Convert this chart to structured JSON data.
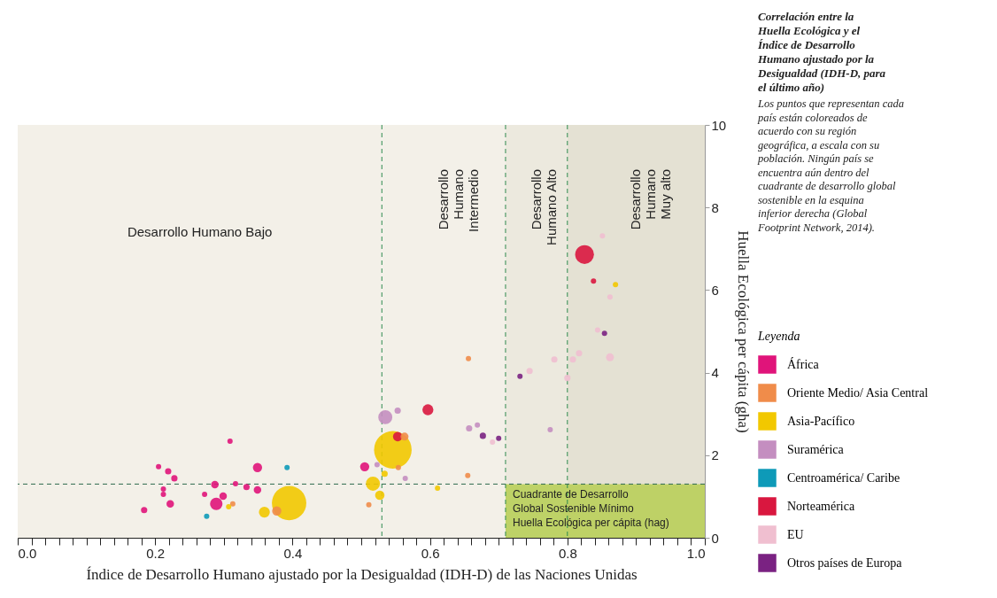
{
  "chart_data": {
    "type": "bubble",
    "title": "Correlación entre la Huella Ecológica y el Índice de Desarrollo Humano ajustado por la Desigualdad (IDH-D, para el último año)",
    "subtitle": "Los puntos que representan cada país están coloreados de acuerdo con su región geográfica, a escala con su población. Ningún país se encuentra aún dentro del cuadrante de desarrollo global sostenible en la esquina inferior derecha (Global Footprint Network, 2014).",
    "xlabel": "Índice de Desarrollo Humano ajustado por la Desigualdad (IDH-D) de las Naciones Unidas",
    "ylabel": "Huella Ecológica per cápita (gha)",
    "legend_title": "Leyenda",
    "xlim": [
      0,
      1
    ],
    "ylim": [
      0,
      10
    ],
    "xticks": [
      {
        "value": 0,
        "label": "0.0"
      },
      0.2,
      0.4,
      0.6,
      0.8,
      {
        "value": 1,
        "label": "1.0"
      },
      {
        "value": 0.02,
        "label": null
      },
      {
        "value": 0.04,
        "label": null
      },
      {
        "value": 0.06,
        "label": null
      },
      {
        "value": 0.08,
        "label": null
      },
      {
        "value": 0.1,
        "label": null
      },
      {
        "value": 0.12,
        "label": null
      },
      {
        "value": 0.14,
        "label": null
      },
      {
        "value": 0.16,
        "label": null
      },
      {
        "value": 0.18,
        "label": null
      },
      {
        "value": 0.22,
        "label": null
      },
      {
        "value": 0.24,
        "label": null
      },
      {
        "value": 0.26,
        "label": null
      },
      {
        "value": 0.28,
        "label": null
      },
      {
        "value": 0.3,
        "label": null
      },
      {
        "value": 0.32,
        "label": null
      },
      {
        "value": 0.34,
        "label": null
      },
      {
        "value": 0.36,
        "label": null
      },
      {
        "value": 0.38,
        "label": null
      },
      {
        "value": 0.42,
        "label": null
      },
      {
        "value": 0.44,
        "label": null
      },
      {
        "value": 0.46,
        "label": null
      },
      {
        "value": 0.48,
        "label": null
      },
      {
        "value": 0.5,
        "label": null
      },
      {
        "value": 0.52,
        "label": null
      },
      {
        "value": 0.54,
        "label": null
      },
      {
        "value": 0.56,
        "label": null
      },
      {
        "value": 0.58,
        "label": null
      },
      {
        "value": 0.62,
        "label": null
      },
      {
        "value": 0.64,
        "label": null
      },
      {
        "value": 0.66,
        "label": null
      },
      {
        "value": 0.68,
        "label": null
      },
      {
        "value": 0.7,
        "label": null
      },
      {
        "value": 0.72,
        "label": null
      },
      {
        "value": 0.74,
        "label": null
      },
      {
        "value": 0.76,
        "label": null
      },
      {
        "value": 0.78,
        "label": null
      },
      {
        "value": 0.82,
        "label": null
      },
      {
        "value": 0.84,
        "label": null
      },
      {
        "value": 0.86,
        "label": null
      },
      {
        "value": 0.88,
        "label": null
      },
      {
        "value": 0.9,
        "label": null
      },
      {
        "value": 0.92,
        "label": null
      },
      {
        "value": 0.94,
        "label": null
      },
      {
        "value": 0.96,
        "label": null
      },
      {
        "value": 0.98,
        "label": null
      }
    ],
    "yticks": [
      0,
      2,
      4,
      6,
      8,
      10
    ],
    "grid": false,
    "legend": "right",
    "marker": "circle",
    "bands": [
      {
        "axis": "x",
        "from": 0,
        "to": 0.53,
        "label": "Desarrollo Humano Bajo",
        "color": "#f3f0e8"
      },
      {
        "axis": "x",
        "from": 0.53,
        "to": 0.71,
        "label": "Desarrollo\nHumano\nIntermedio",
        "color": "#f3f0e8"
      },
      {
        "axis": "x",
        "from": 0.71,
        "to": 0.8,
        "label": "Desarrollo\nHumano Alto",
        "color": "#ece9de"
      },
      {
        "axis": "x",
        "from": 0.8,
        "to": 1,
        "label": "Desarrollo\nHumano\nMuy alto",
        "color": "#e4e1d3"
      },
      {
        "axis": "y",
        "from": 0,
        "to": 1.3,
        "label": "Cuadrante de Desarrollo\nGlobal Sostenible Mínimo\nHuella Ecológica per cápita (hag)",
        "color": "#b9cf5a"
      }
    ],
    "ref_lines": [
      {
        "axis": "x",
        "value": 0.53,
        "color": "#2e8a4e",
        "line_style": "dashed"
      },
      {
        "axis": "x",
        "value": 0.71,
        "color": "#2e8a4e",
        "line_style": "dashed"
      },
      {
        "axis": "x",
        "value": 0.8,
        "color": "#2e8a4e",
        "line_style": "dashed"
      },
      {
        "axis": "y",
        "value": 1.3,
        "color": "#2e6a4e",
        "line_style": "dashed"
      }
    ],
    "series": [
      {
        "name": "África",
        "color": "#e0147a",
        "x": [
          0.184,
          0.205,
          0.219,
          0.228,
          0.212,
          0.212,
          0.222,
          0.309,
          0.287,
          0.289,
          0.299,
          0.333,
          0.349,
          0.349,
          0.317,
          0.272,
          0.505
        ],
        "values": [
          0.67,
          1.72,
          1.61,
          1.44,
          1.18,
          1.05,
          0.82,
          2.34,
          1.29,
          0.82,
          1.01,
          1.23,
          1.7,
          1.16,
          1.31,
          1.05,
          1.72
        ],
        "sizes": [
          0.028,
          0.02,
          0.028,
          0.028,
          0.02,
          0.02,
          0.04,
          0.02,
          0.04,
          0.11,
          0.04,
          0.028,
          0.06,
          0.04,
          0.02,
          0.02,
          0.06
        ]
      },
      {
        "name": "Oriente Medio/ Asia Central",
        "color": "#f08c4a",
        "x": [
          0.377,
          0.313,
          0.563,
          0.656,
          0.554,
          0.511,
          0.655
        ],
        "values": [
          0.65,
          0.82,
          2.45,
          4.34,
          1.7,
          0.8,
          1.51
        ],
        "sizes": [
          0.06,
          0.02,
          0.045,
          0.02,
          0.02,
          0.02,
          0.02
        ]
      },
      {
        "name": "Asia-Pacífico",
        "color": "#f2c800",
        "x": [
          0.395,
          0.359,
          0.307,
          0.546,
          0.517,
          0.527,
          0.534,
          0.611,
          0.87
        ],
        "values": [
          0.84,
          0.62,
          0.75,
          2.13,
          1.31,
          1.03,
          1.55,
          1.2,
          6.13
        ],
        "sizes": [
          0.84,
          0.085,
          0.02,
          1,
          0.14,
          0.0625,
          0.028,
          0.02,
          0.02
        ]
      },
      {
        "name": "Suramérica",
        "color": "#c48ec0",
        "x": [
          0.535,
          0.553,
          0.657,
          0.669,
          0.775,
          0.564,
          0.523
        ],
        "values": [
          2.92,
          3.08,
          2.65,
          2.73,
          2.62,
          1.44,
          1.77
        ],
        "sizes": [
          0.14,
          0.028,
          0.028,
          0.02,
          0.02,
          0.02,
          0.02
        ]
      },
      {
        "name": "Centroamérica/ Caribe",
        "color": "#0e9ab8",
        "x": [
          0.392,
          0.275
        ],
        "values": [
          1.7,
          0.52
        ],
        "sizes": [
          0.02,
          0.02
        ]
      },
      {
        "name": "Norteamérica",
        "color": "#d9173f",
        "x": [
          0.825,
          0.838,
          0.597,
          0.553
        ],
        "values": [
          6.86,
          6.22,
          3.1,
          2.45
        ],
        "sizes": [
          0.25,
          0.02,
          0.085,
          0.0625
        ]
      },
      {
        "name": "EU",
        "color": "#f0bfd0",
        "x": [
          0.691,
          0.745,
          0.781,
          0.808,
          0.817,
          0.862,
          0.8,
          0.862,
          0.844,
          0.851
        ],
        "values": [
          2.32,
          4.04,
          4.32,
          4.32,
          4.47,
          4.37,
          3.87,
          5.83,
          5.03,
          7.31
        ],
        "sizes": [
          0.02,
          0.028,
          0.028,
          0.028,
          0.028,
          0.045,
          0.028,
          0.02,
          0.02,
          0.02
        ]
      },
      {
        "name": "Otros países de Europa",
        "color": "#7a2282",
        "x": [
          0.677,
          0.7,
          0.731,
          0.854
        ],
        "values": [
          2.47,
          2.41,
          3.91,
          4.95
        ],
        "sizes": [
          0.028,
          0.02,
          0.02,
          0.02
        ]
      }
    ]
  }
}
